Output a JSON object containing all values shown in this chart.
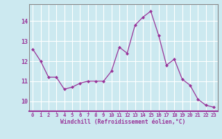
{
  "x": [
    0,
    1,
    2,
    3,
    4,
    5,
    6,
    7,
    8,
    9,
    10,
    11,
    12,
    13,
    14,
    15,
    16,
    17,
    18,
    19,
    20,
    21,
    22,
    23
  ],
  "y": [
    12.6,
    12.0,
    11.2,
    11.2,
    10.6,
    10.7,
    10.9,
    11.0,
    11.0,
    11.0,
    11.5,
    12.7,
    12.4,
    13.8,
    14.2,
    14.5,
    13.3,
    11.8,
    12.1,
    11.1,
    10.8,
    10.1,
    9.8,
    9.7
  ],
  "line_color": "#993399",
  "marker": "D",
  "marker_size": 2.0,
  "bg_color": "#cce9f0",
  "grid_color": "#ffffff",
  "xlabel": "Windchill (Refroidissement éolien,°C)",
  "ylim": [
    9.5,
    14.85
  ],
  "xlim": [
    -0.5,
    23.5
  ],
  "yticks": [
    10,
    11,
    12,
    13,
    14
  ],
  "xticks": [
    0,
    1,
    2,
    3,
    4,
    5,
    6,
    7,
    8,
    9,
    10,
    11,
    12,
    13,
    14,
    15,
    16,
    17,
    18,
    19,
    20,
    21,
    22,
    23
  ],
  "label_color": "#993399",
  "tick_color": "#993399",
  "axis_line_color": "#993399",
  "font": "monospace",
  "tick_fontsize": 5.2,
  "label_fontsize": 5.8,
  "ytick_fontsize": 6.0
}
